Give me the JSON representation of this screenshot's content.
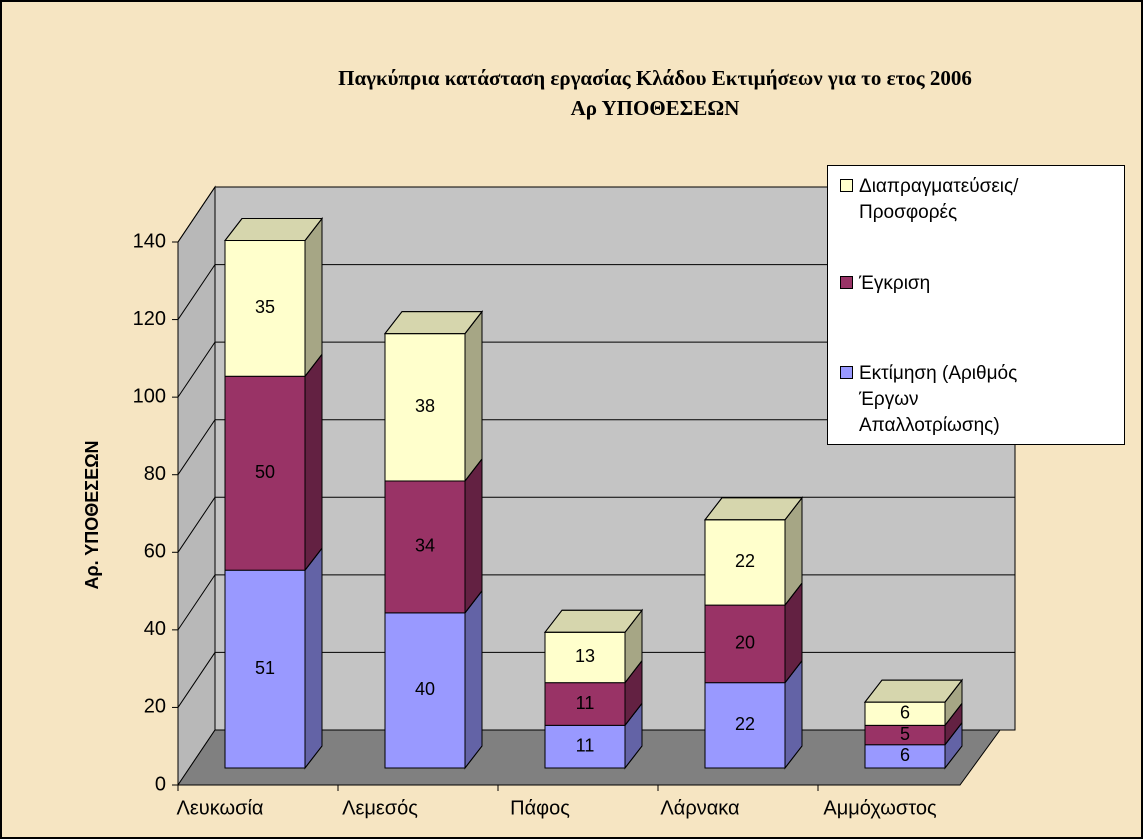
{
  "chart_data": {
    "type": "bar3d_stacked",
    "title": "Παγκύπρια κατάσταση εργασίας Κλάδου Εκτιμήσεων για το ετος 2006",
    "subtitle": "Αρ ΥΠΟΘΕΣΕΩΝ",
    "y_label": "Αρ. ΥΠΟΘΕΣΕΩΝ",
    "categories": [
      "Λευκωσία",
      "Λεμεσός",
      "Πάφος",
      "Λάρνακα",
      "Αμμόχωστος"
    ],
    "series": [
      {
        "name": "Εκτίμηση (Αριθμός Έργων Απαλλοτρίωσης)",
        "color": "#9999ff",
        "values": [
          51,
          40,
          11,
          22,
          6
        ]
      },
      {
        "name": "Έγκριση",
        "color": "#993366",
        "values": [
          50,
          34,
          11,
          20,
          5
        ]
      },
      {
        "name": "Διαπραγματεύσεις/ Προσφορές",
        "color": "#ffffcc",
        "values": [
          35,
          38,
          13,
          22,
          6
        ]
      }
    ],
    "ylim": [
      0,
      140
    ],
    "yticks": [
      0,
      20,
      40,
      60,
      80,
      100,
      120,
      140
    ],
    "grid": true,
    "legend": "right"
  }
}
